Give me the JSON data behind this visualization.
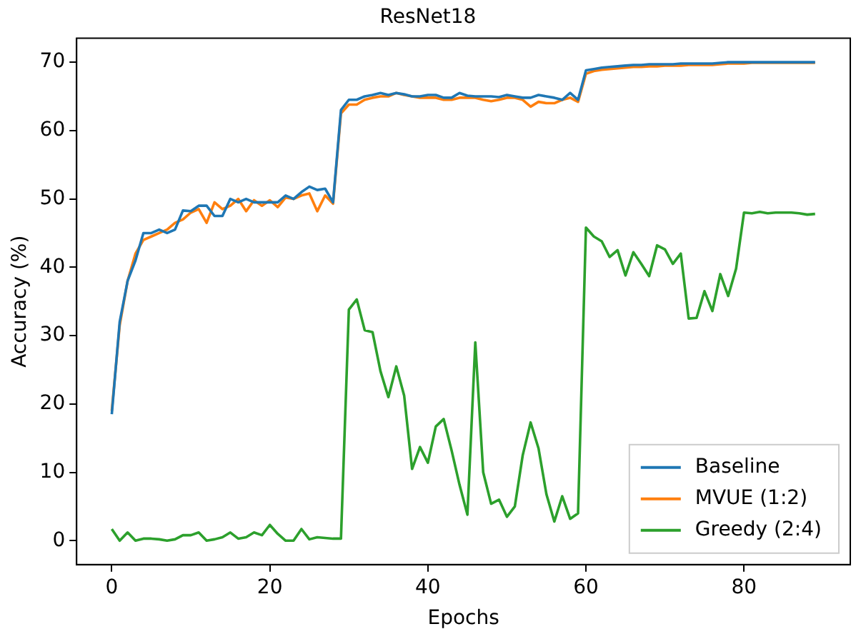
{
  "chart_data": {
    "type": "line",
    "title": "ResNet18",
    "xlabel": "Epochs",
    "ylabel": "Accuracy (%)",
    "x": [
      0,
      1,
      2,
      3,
      4,
      5,
      6,
      7,
      8,
      9,
      10,
      11,
      12,
      13,
      14,
      15,
      16,
      17,
      18,
      19,
      20,
      21,
      22,
      23,
      24,
      25,
      26,
      27,
      28,
      29,
      30,
      31,
      32,
      33,
      34,
      35,
      36,
      37,
      38,
      39,
      40,
      41,
      42,
      43,
      44,
      45,
      46,
      47,
      48,
      49,
      50,
      51,
      52,
      53,
      54,
      55,
      56,
      57,
      58,
      59,
      60,
      61,
      62,
      63,
      64,
      65,
      66,
      67,
      68,
      69,
      70,
      71,
      72,
      73,
      74,
      75,
      76,
      77,
      78,
      79,
      80,
      81,
      82,
      83,
      84,
      85,
      86,
      87,
      88,
      89
    ],
    "series": [
      {
        "name": "Baseline",
        "color": "#1f77b4",
        "values": [
          18.5,
          32,
          38,
          41,
          45,
          45,
          45.5,
          45,
          45.5,
          48.3,
          48.2,
          49,
          49,
          47.5,
          47.5,
          50,
          49.5,
          50,
          49.5,
          49.5,
          49.5,
          49.5,
          50.5,
          50,
          51,
          51.8,
          51.3,
          51.5,
          49.5,
          63,
          64.5,
          64.5,
          65,
          65.2,
          65.5,
          65.2,
          65.5,
          65.3,
          65,
          65,
          65.2,
          65.2,
          64.8,
          64.8,
          65.5,
          65.1,
          65,
          65,
          65,
          64.9,
          65.2,
          65,
          64.8,
          64.8,
          65.2,
          65,
          64.8,
          64.5,
          65.5,
          64.5,
          68.8,
          69,
          69.2,
          69.3,
          69.4,
          69.5,
          69.6,
          69.6,
          69.7,
          69.7,
          69.7,
          69.7,
          69.8,
          69.8,
          69.8,
          69.8,
          69.8,
          69.9,
          70,
          70,
          70,
          70,
          70,
          70,
          70,
          70,
          70,
          70,
          70,
          70
        ]
      },
      {
        "name": "MVUE (1:2)",
        "color": "#ff7f0e",
        "values": [
          19,
          31.5,
          38,
          42,
          44,
          44.5,
          45,
          45.5,
          46.5,
          47,
          48,
          48.5,
          46.5,
          49.5,
          48.5,
          49,
          50,
          48.2,
          49.8,
          49,
          49.8,
          48.8,
          50.2,
          50,
          50.5,
          50.8,
          48.2,
          50.5,
          49.3,
          62.5,
          63.8,
          63.8,
          64.5,
          64.8,
          65,
          65,
          65.5,
          65.2,
          65,
          64.8,
          64.8,
          64.8,
          64.5,
          64.5,
          64.8,
          64.8,
          64.8,
          64.5,
          64.3,
          64.5,
          64.8,
          64.8,
          64.5,
          63.5,
          64.2,
          64,
          64,
          64.5,
          64.8,
          64.2,
          68.3,
          68.7,
          68.9,
          69,
          69.1,
          69.2,
          69.3,
          69.3,
          69.4,
          69.4,
          69.5,
          69.5,
          69.5,
          69.6,
          69.6,
          69.6,
          69.6,
          69.7,
          69.8,
          69.8,
          69.8,
          69.9,
          69.9,
          69.9,
          69.9,
          69.9,
          69.9,
          69.9,
          69.9,
          69.9
        ]
      },
      {
        "name": "Greedy (2:4)",
        "color": "#2ca02c",
        "values": [
          1.7,
          0,
          1.2,
          0,
          0.3,
          0.3,
          0.2,
          0,
          0.2,
          0.8,
          0.8,
          1.2,
          0,
          0.2,
          0.5,
          1.2,
          0.3,
          0.5,
          1.2,
          0.8,
          2.3,
          1,
          0,
          0,
          1.7,
          0.2,
          0.5,
          0.4,
          0.3,
          0.3,
          33.8,
          35.3,
          30.8,
          30.5,
          24.8,
          21,
          25.5,
          21.2,
          10.5,
          13.7,
          11.4,
          16.7,
          17.8,
          13.2,
          8.2,
          3.8,
          29,
          10,
          5.4,
          6,
          3.5,
          5,
          12.5,
          17.3,
          13.5,
          6.8,
          2.8,
          6.5,
          3.2,
          4,
          45.8,
          44.5,
          43.8,
          41.5,
          42.5,
          38.8,
          42.2,
          40.5,
          38.7,
          43.2,
          42.6,
          40.5,
          42,
          32.5,
          32.6,
          36.5,
          33.6,
          39,
          35.8,
          39.8,
          48,
          47.9,
          48.1,
          47.9,
          48,
          48,
          48,
          47.9,
          47.7,
          47.8
        ]
      }
    ],
    "xlim": [
      -4.45,
      93.45
    ],
    "xticks": [
      0,
      20,
      40,
      60,
      80
    ],
    "ylim": [
      -3.5,
      73.5
    ],
    "yticks": [
      0,
      10,
      20,
      30,
      40,
      50,
      60,
      70
    ],
    "grid": false,
    "legend": "bottom right",
    "marker": "none",
    "line_style": "solid"
  }
}
